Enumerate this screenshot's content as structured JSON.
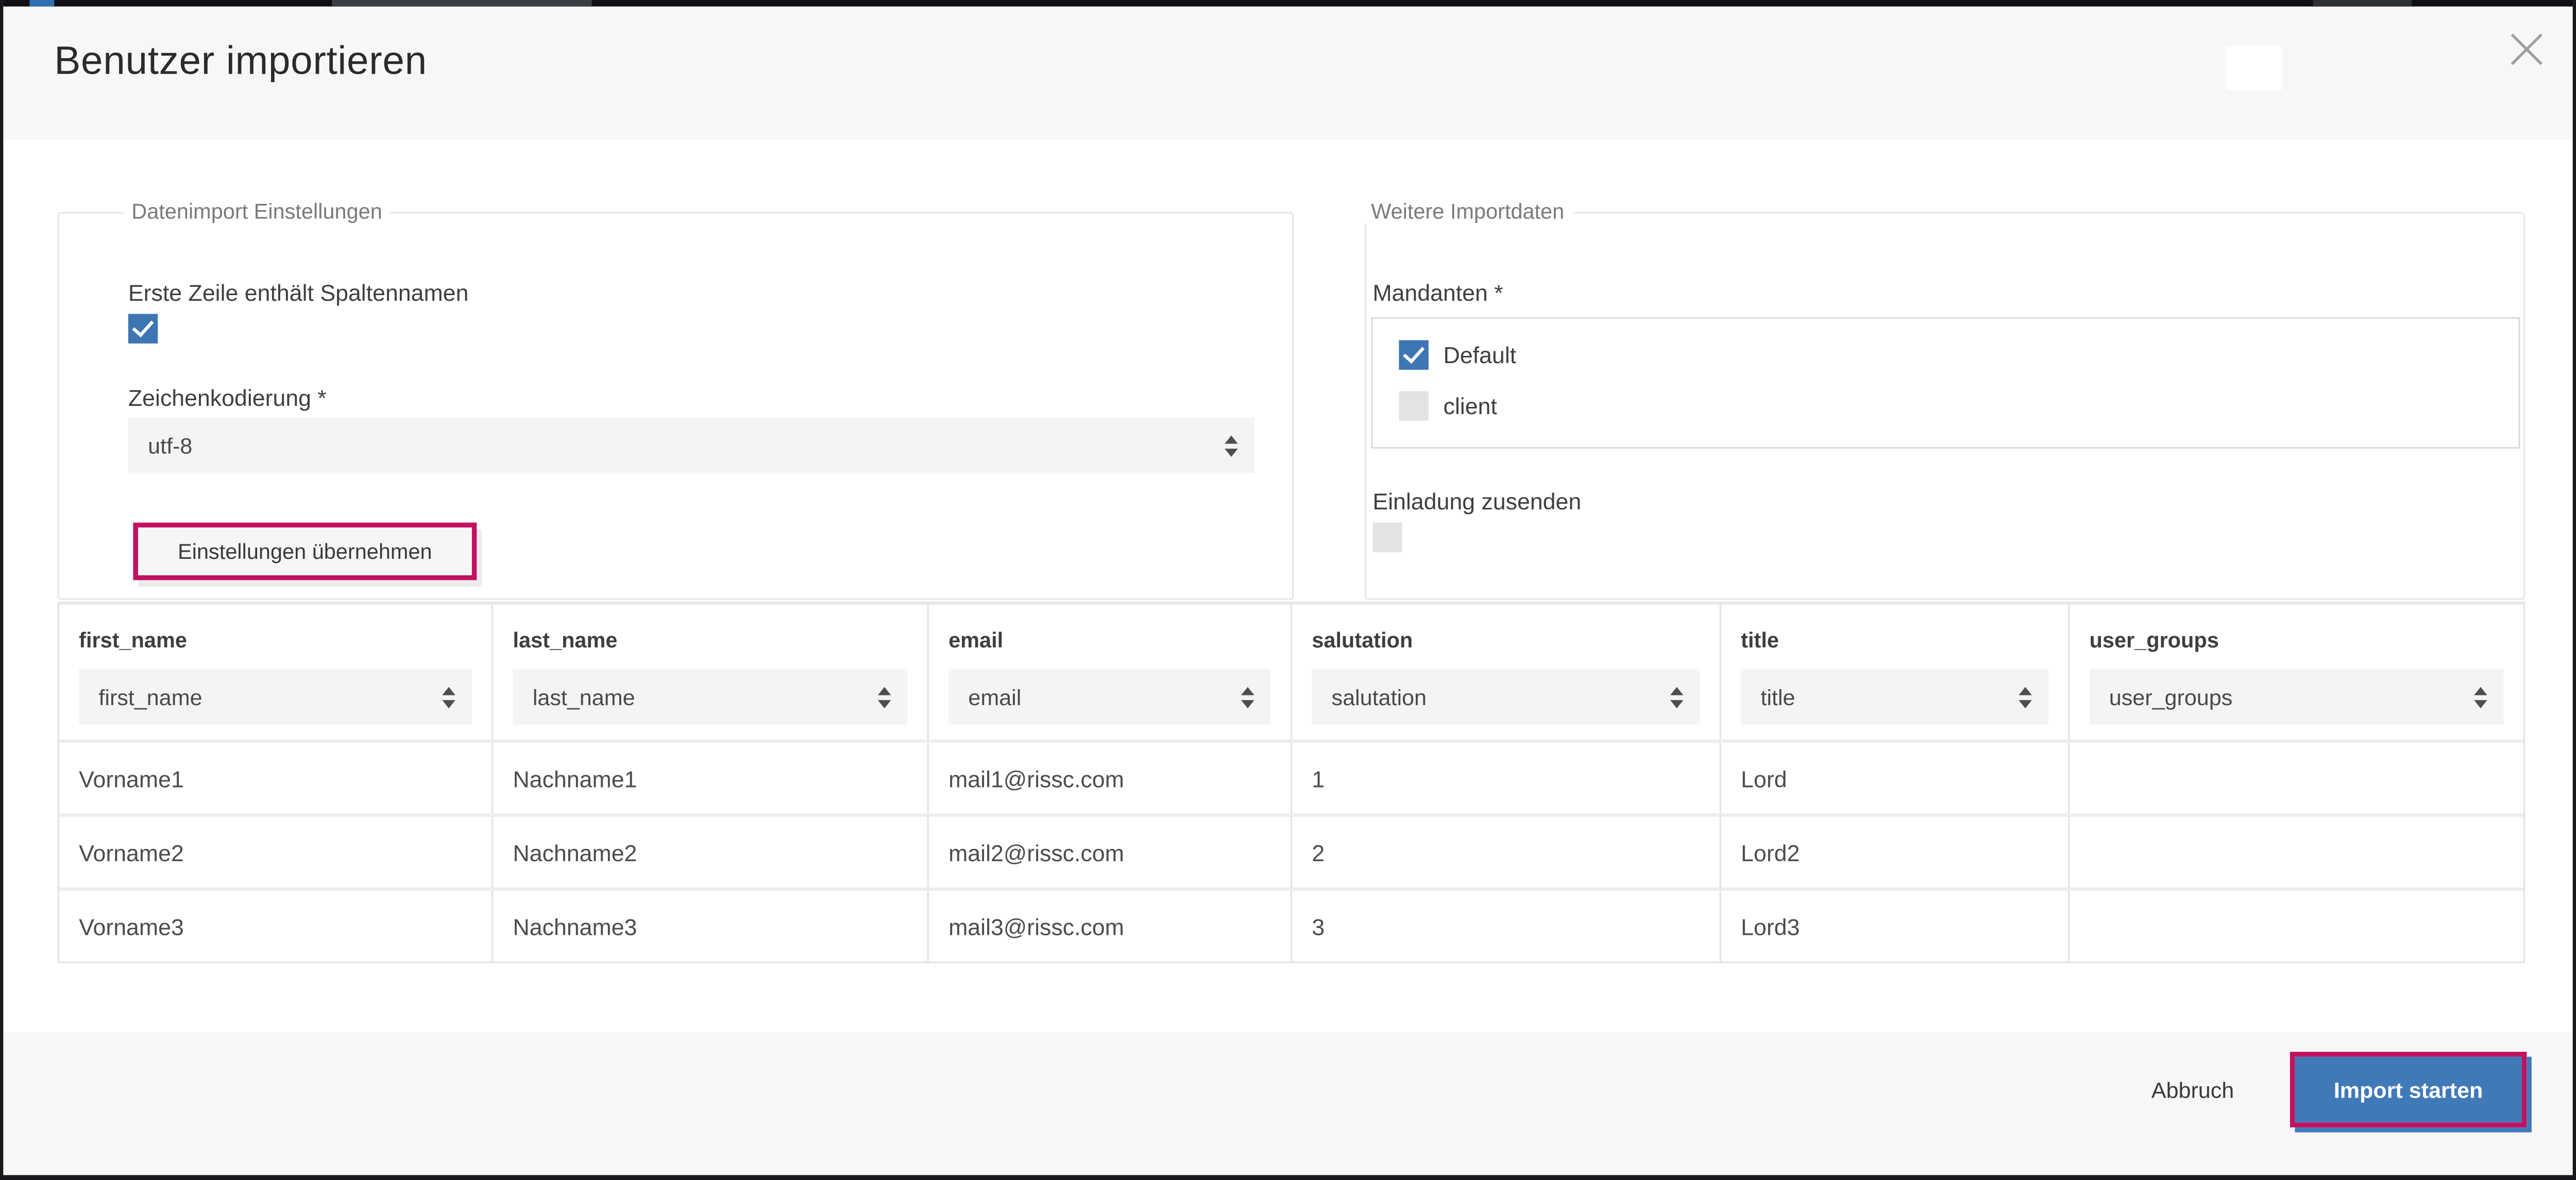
{
  "window": {
    "title": "Benutzer importieren"
  },
  "settings_fieldset": {
    "legend": "Datenimport Einstellungen",
    "first_row_label": "Erste Zeile enthält Spaltennamen",
    "first_row_checked": true,
    "encoding_label": "Zeichenkodierung *",
    "encoding_value": "utf-8",
    "apply_button_label": "Einstellungen übernehmen"
  },
  "import_fieldset": {
    "legend": "Weitere Importdaten",
    "mandanten_label": "Mandanten *",
    "mandanten_options": [
      {
        "label": "Default",
        "checked": true
      },
      {
        "label": "client",
        "checked": false
      }
    ],
    "invitation_label": "Einladung zusenden",
    "invitation_checked": false
  },
  "table": {
    "columns": [
      {
        "label": "first_name",
        "selected": "first_name"
      },
      {
        "label": "last_name",
        "selected": "last_name"
      },
      {
        "label": "email",
        "selected": "email"
      },
      {
        "label": "salutation",
        "selected": "salutation"
      },
      {
        "label": "title",
        "selected": "title"
      },
      {
        "label": "user_groups",
        "selected": "user_groups"
      }
    ],
    "rows": [
      [
        "Vorname1",
        "Nachname1",
        "mail1@rissc.com",
        "1",
        "Lord",
        ""
      ],
      [
        "Vorname2",
        "Nachname2",
        "mail2@rissc.com",
        "2",
        "Lord2",
        ""
      ],
      [
        "Vorname3",
        "Nachname3",
        "mail3@rissc.com",
        "3",
        "Lord3",
        ""
      ]
    ]
  },
  "footer": {
    "cancel_label": "Abbruch",
    "submit_label": "Import starten"
  },
  "colors": {
    "accent_blue": "#4079b8",
    "checkbox_blue": "#3d76b2",
    "annotation_highlight": "#c1125f",
    "header_footer_gray": "#f7f7f8",
    "field_gray": "#f4f4f5"
  }
}
